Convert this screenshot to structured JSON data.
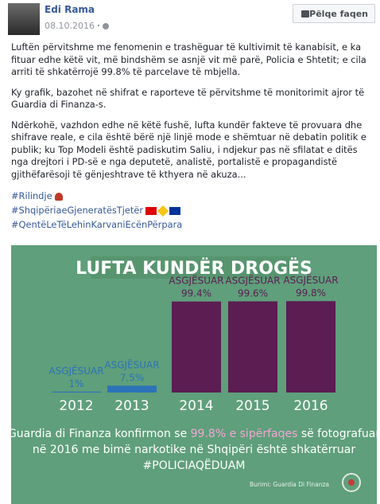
{
  "post": {
    "author": "Edi Rama",
    "date": "08.10.2016",
    "like_button": "Pëlqe faqen",
    "paragraphs": [
      "Luftën përvitshme me fenomenin e trashëguar të kultivimit të kanabisit, e ka fituar edhe këtë vit, më bindshëm se asnjë vit më parë, Policia e Shtetit; e cila arriti të shkatërrojë 99.8% të parcelave të mbjella.",
      "Ky grafik, bazohet në shifrat e raporteve të përvitshme të monitorimit ajror të Guardia di Finanza-s.",
      "Ndërkohë, vazhdon edhe në këtë fushë, lufta kundër fakteve të provuara dhe shifrave reale, e cila është bërë një linjë mode e shëmtuar në debatin politik e publik; ku Top Modeli është padiskutim Saliu, i ndjekur pas në sfilatat e ditës nga drejtori i PD-së e nga deputetë, analistë, portalistë e propagandistë gjithëfarësoji të gënjeshtrave të kthyera në akuza..."
    ],
    "hashtags": [
      "#Rilindje",
      "#ShqipëriaeGjeneratësTjetër",
      "#QentëLeTëLehinKarvaniEcënPërpara"
    ]
  },
  "chart_data": {
    "type": "bar",
    "title": "LUFTA KUNDËR DROGËS",
    "categories": [
      "2012",
      "2013",
      "2014",
      "2015",
      "2016"
    ],
    "values": [
      1,
      7.5,
      99.4,
      99.6,
      99.8
    ],
    "value_labels": [
      "1%",
      "7.5%",
      "99.4%",
      "99.6%",
      "99.8%"
    ],
    "bar_captions": [
      "ASGJËSUAR",
      "ASGJËSUAR",
      "ASGJËSUAR",
      "ASGJËSUAR",
      "ASGJËSUAR"
    ],
    "colors": [
      "#2c73b8",
      "#2c73b8",
      "#5b1d52",
      "#5b1d52",
      "#5b1d52"
    ],
    "ylim": [
      0,
      100
    ],
    "note_lines": [
      [
        "Guardia di Finanza konfirmon se ",
        "99.8% e sipërfaqes",
        " së fotografuar"
      ],
      [
        "në 2016 me bimë narkotike në Shqipëri është shkatërruar"
      ],
      [
        "#POLICIAQËDUAM"
      ]
    ],
    "source": "Burimi: Guardia Di Finanza"
  }
}
